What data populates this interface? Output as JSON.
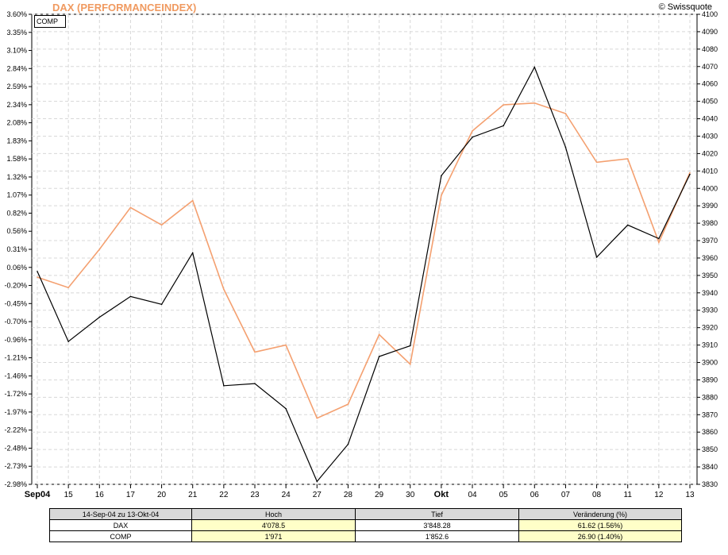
{
  "header": {
    "title": "DAX (PERFORMANCEINDEX)",
    "credit": "© Swissquote",
    "legend_label": "COMP"
  },
  "colors": {
    "dax": "#f4a070",
    "comp": "#000000",
    "grid": "#d8d8d8",
    "table_header": "#d9d9d9",
    "table_value": "#ffffc8"
  },
  "chart_data": {
    "type": "line",
    "title": "DAX (PERFORMANCEINDEX)",
    "categories": [
      "Sep04",
      "15",
      "16",
      "17",
      "20",
      "21",
      "22",
      "23",
      "24",
      "27",
      "28",
      "29",
      "30",
      "Okt",
      "04",
      "05",
      "06",
      "07",
      "08",
      "11",
      "12",
      "13"
    ],
    "bold_categories": [
      "Sep04",
      "Okt"
    ],
    "left_axis": {
      "ticks": [
        "3.60%",
        "3.35%",
        "3.10%",
        "2.84%",
        "2.59%",
        "2.34%",
        "2.08%",
        "1.83%",
        "1.58%",
        "1.32%",
        "1.07%",
        "0.82%",
        "0.56%",
        "0.31%",
        "0.06%",
        "-0.20%",
        "-0.45%",
        "-0.70%",
        "-0.96%",
        "-1.21%",
        "-1.46%",
        "-1.72%",
        "-1.97%",
        "-2.22%",
        "-2.48%",
        "-2.73%",
        "-2.98%"
      ],
      "range": [
        -2.98,
        3.6
      ]
    },
    "right_axis": {
      "ticks": [
        "4100",
        "4090",
        "4080",
        "4070",
        "4060",
        "4050",
        "4040",
        "4030",
        "4020",
        "4010",
        "4000",
        "3990",
        "3980",
        "3970",
        "3960",
        "3950",
        "3940",
        "3930",
        "3920",
        "3910",
        "3900",
        "3890",
        "3880",
        "3870",
        "3860",
        "3850",
        "3840",
        "3830"
      ],
      "range": [
        3830,
        4100
      ]
    },
    "grid": true,
    "series": [
      {
        "name": "DAX",
        "axis": "right",
        "values": [
          3949,
          3943,
          3965,
          3989,
          3979,
          3993,
          3942,
          3906,
          3910,
          3868,
          3876,
          3916,
          3899,
          3996,
          4033,
          4048,
          4049,
          4043,
          4015,
          4017,
          3969,
          4009
        ]
      },
      {
        "name": "COMP",
        "axis": "left",
        "values": [
          0.0,
          -0.98,
          -0.64,
          -0.35,
          -0.46,
          0.26,
          -1.6,
          -1.57,
          -1.92,
          -2.94,
          -2.42,
          -1.19,
          -1.04,
          1.34,
          1.88,
          2.04,
          2.86,
          1.74,
          0.2,
          0.65,
          0.46,
          1.36
        ]
      }
    ]
  },
  "summary_table": {
    "period": "14-Sep-04 zu 13-Okt-04",
    "headers": [
      "Hoch",
      "Tief",
      "Veränderung (%)"
    ],
    "rows": [
      {
        "label": "DAX",
        "hoch": "4'078.5",
        "tief": "3'848.28",
        "change": "61.62 (1.56%)"
      },
      {
        "label": "COMP",
        "hoch": "1'971",
        "tief": "1'852.6",
        "change": "26.90 (1.40%)"
      }
    ]
  }
}
